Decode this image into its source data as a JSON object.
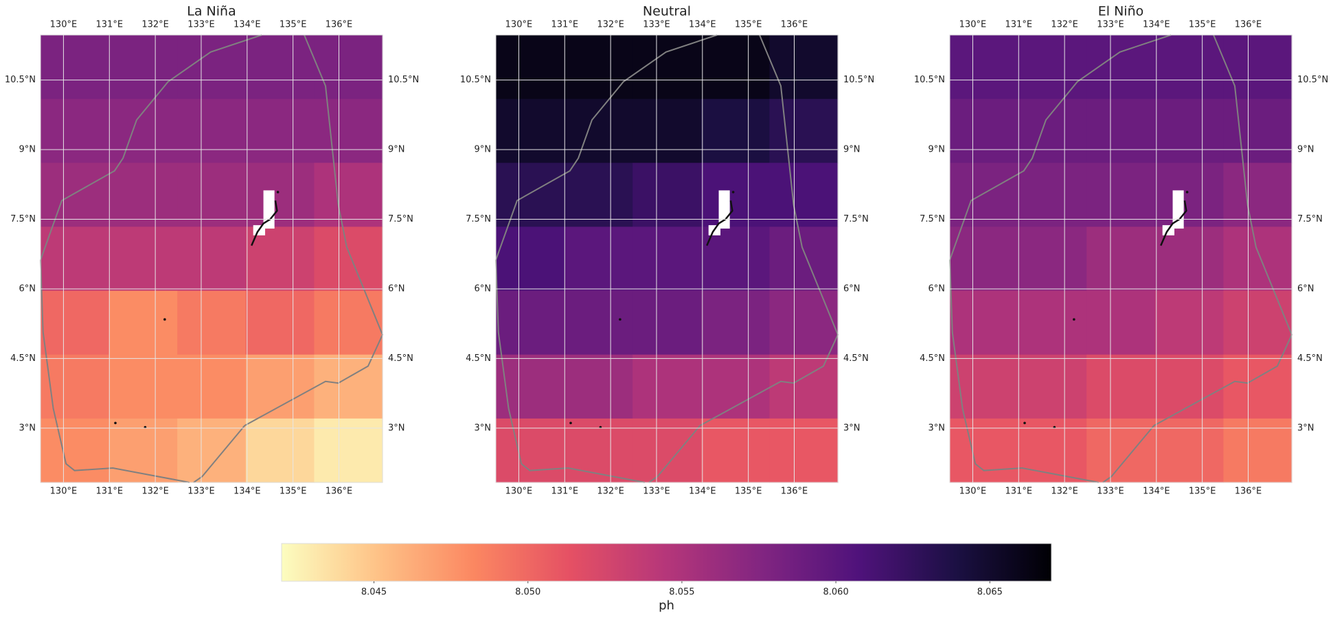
{
  "panels": [
    {
      "title": "La Niña",
      "values": [
        [
          8.058,
          8.058,
          8.058,
          8.058,
          8.058
        ],
        [
          8.057,
          8.057,
          8.057,
          8.057,
          8.057
        ],
        [
          8.056,
          8.056,
          8.056,
          8.056,
          8.055
        ],
        [
          8.054,
          8.054,
          8.054,
          8.053,
          8.052
        ],
        [
          8.05,
          8.048,
          8.049,
          8.05,
          8.049
        ],
        [
          8.049,
          8.048,
          8.048,
          8.047,
          8.046
        ],
        [
          8.048,
          8.047,
          8.046,
          8.044,
          8.043
        ]
      ]
    },
    {
      "title": "Neutral",
      "values": [
        [
          8.066,
          8.066,
          8.066,
          8.066,
          8.065
        ],
        [
          8.065,
          8.065,
          8.065,
          8.064,
          8.063
        ],
        [
          8.063,
          8.063,
          8.062,
          8.061,
          8.061
        ],
        [
          8.061,
          8.06,
          8.06,
          8.06,
          8.059
        ],
        [
          8.059,
          8.059,
          8.059,
          8.058,
          8.057
        ],
        [
          8.056,
          8.056,
          8.055,
          8.055,
          8.054
        ],
        [
          8.052,
          8.052,
          8.052,
          8.051,
          8.051
        ]
      ]
    },
    {
      "title": "El Niño",
      "values": [
        [
          8.06,
          8.06,
          8.06,
          8.06,
          8.06
        ],
        [
          8.059,
          8.059,
          8.059,
          8.059,
          8.059
        ],
        [
          8.058,
          8.058,
          8.058,
          8.058,
          8.057
        ],
        [
          8.057,
          8.057,
          8.056,
          8.056,
          8.055
        ],
        [
          8.055,
          8.055,
          8.055,
          8.054,
          8.053
        ],
        [
          8.053,
          8.053,
          8.052,
          8.052,
          8.051
        ],
        [
          8.051,
          8.051,
          8.05,
          8.05,
          8.049
        ]
      ]
    }
  ],
  "map": {
    "xlim": [
      129.5,
      136.95
    ],
    "ylim": [
      1.83,
      11.47
    ],
    "grid": true,
    "xticks": [
      {
        "value": 130,
        "label": "130°E"
      },
      {
        "value": 131,
        "label": "131°E"
      },
      {
        "value": 132,
        "label": "132°E"
      },
      {
        "value": 133,
        "label": "133°E"
      },
      {
        "value": 134,
        "label": "134°E"
      },
      {
        "value": 135,
        "label": "135°E"
      },
      {
        "value": 136,
        "label": "136°E"
      }
    ],
    "yticks": [
      {
        "value": 3,
        "label": "3°N"
      },
      {
        "value": 4.5,
        "label": "4.5°N"
      },
      {
        "value": 6,
        "label": "6°N"
      },
      {
        "value": 7.5,
        "label": "7.5°N"
      },
      {
        "value": 9,
        "label": "9°N"
      },
      {
        "value": 10.5,
        "label": "10.5°N"
      }
    ]
  },
  "colorbar": {
    "label": "ph",
    "colormap": "magma_r",
    "lim": [
      8.042,
      8.067
    ],
    "ticks": [
      8.045,
      {
        "value": 8.05,
        "label": "8.050"
      },
      8.055,
      {
        "value": 8.06,
        "label": "8.060"
      },
      8.065
    ]
  }
}
